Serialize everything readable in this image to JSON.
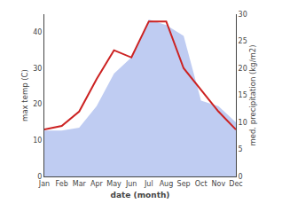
{
  "chart_data": {
    "type": "line",
    "xlabel": "date (month)",
    "ylabel": "max temp (C)",
    "y2label": "med. precipitation (kg/m2)",
    "categories": [
      "Jan",
      "Feb",
      "Mar",
      "Apr",
      "May",
      "Jun",
      "Jul",
      "Aug",
      "Sep",
      "Oct",
      "Nov",
      "Dec"
    ],
    "series": [
      {
        "type": "area",
        "axis": "y2",
        "color": "#aabbee",
        "values": [
          8.5,
          8.5,
          9,
          13,
          19,
          22,
          29,
          28,
          26,
          14,
          13,
          10
        ]
      },
      {
        "type": "line",
        "color": "#cc2222",
        "values": [
          13,
          14,
          18,
          27,
          35,
          33,
          43,
          43,
          30,
          24,
          18,
          13
        ]
      }
    ],
    "ylim": [
      0,
      45
    ],
    "yticks": [
      0,
      10,
      20,
      30,
      40
    ],
    "y2lim": [
      0,
      30
    ],
    "y2ticks": [
      0,
      5,
      10,
      15,
      20,
      25,
      30
    ],
    "grid": false
  }
}
